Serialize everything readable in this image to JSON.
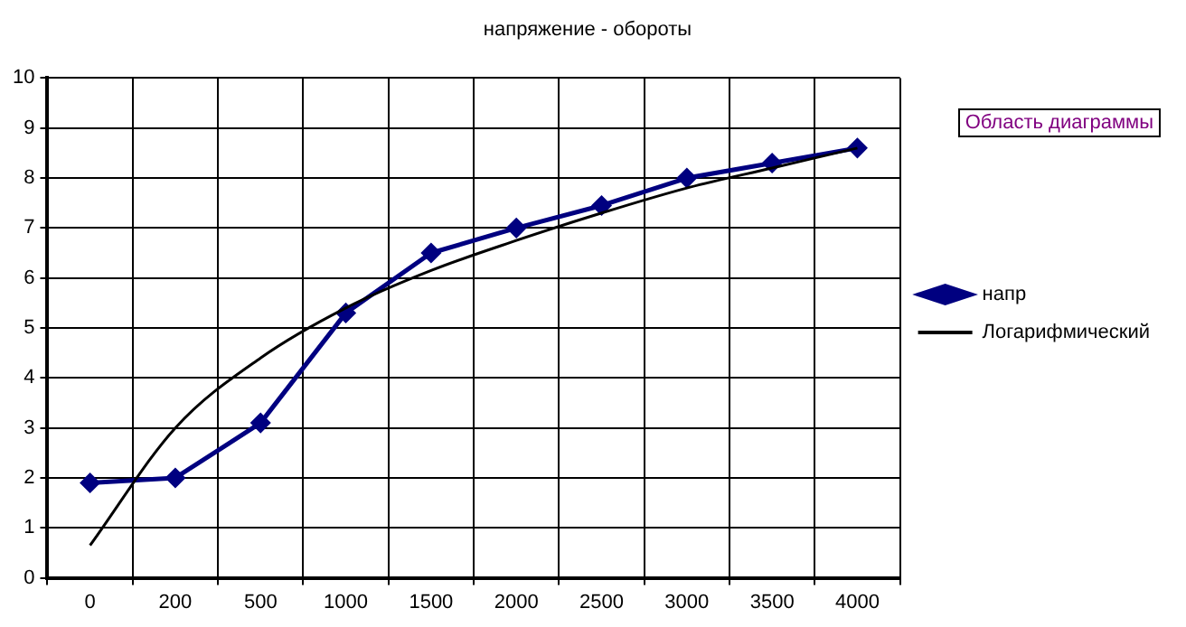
{
  "chart_data": {
    "type": "line",
    "title": "напряжение - обороты",
    "categories": [
      "0",
      "200",
      "500",
      "1000",
      "1500",
      "2000",
      "2500",
      "3000",
      "3500",
      "4000"
    ],
    "series": [
      {
        "name": "напр",
        "color": "#000080",
        "values": [
          1.9,
          2.0,
          3.1,
          5.3,
          6.5,
          7.0,
          7.45,
          8.0,
          8.3,
          8.6
        ],
        "marker": "diamond"
      },
      {
        "name": "Логарифмический",
        "color": "#000000",
        "values": [
          0.65,
          3.0,
          4.4,
          5.4,
          6.15,
          6.75,
          7.3,
          7.8,
          8.2,
          8.6
        ],
        "marker": "none"
      }
    ],
    "ylim": [
      0,
      10
    ],
    "yticks": [
      0,
      1,
      2,
      3,
      4,
      5,
      6,
      7,
      8,
      9,
      10
    ],
    "grid": true,
    "legend": "right",
    "annotations": [
      "Область диаграммы"
    ]
  }
}
